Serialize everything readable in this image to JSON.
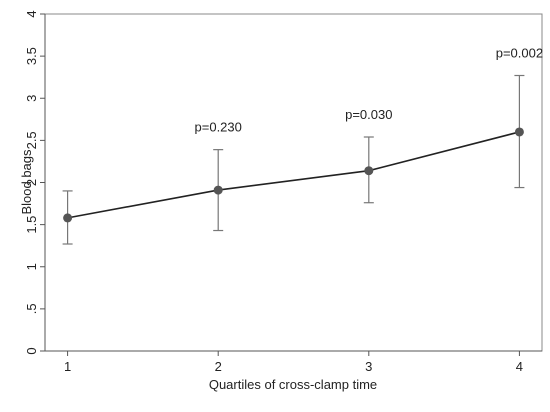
{
  "chart_data": {
    "type": "line",
    "xlabel": "Quartiles of cross-clamp time",
    "ylabel": "Blood bags",
    "x": [
      1,
      2,
      3,
      4
    ],
    "xticks": [
      "1",
      "2",
      "3",
      "4"
    ],
    "xlim": [
      0.85,
      4.15
    ],
    "ylim": [
      0,
      4
    ],
    "yticks": [
      "0",
      ".5",
      "1",
      "1.5",
      "2",
      "2.5",
      "3",
      "3.5",
      "4"
    ],
    "grid": false,
    "series": [
      {
        "values": [
          1.58,
          1.91,
          2.14,
          2.6
        ],
        "ci_low": [
          1.27,
          1.43,
          1.76,
          1.94
        ],
        "ci_high": [
          1.9,
          2.39,
          2.54,
          3.27
        ]
      }
    ],
    "annotations": [
      {
        "x": 2,
        "text": "p=0.230"
      },
      {
        "x": 3,
        "text": "p=0.030"
      },
      {
        "x": 4,
        "text": "p=0.002"
      }
    ],
    "colors": {
      "line": "#222222",
      "marker": "#555555",
      "errorbar": "#777777",
      "frame": "#888888"
    }
  }
}
